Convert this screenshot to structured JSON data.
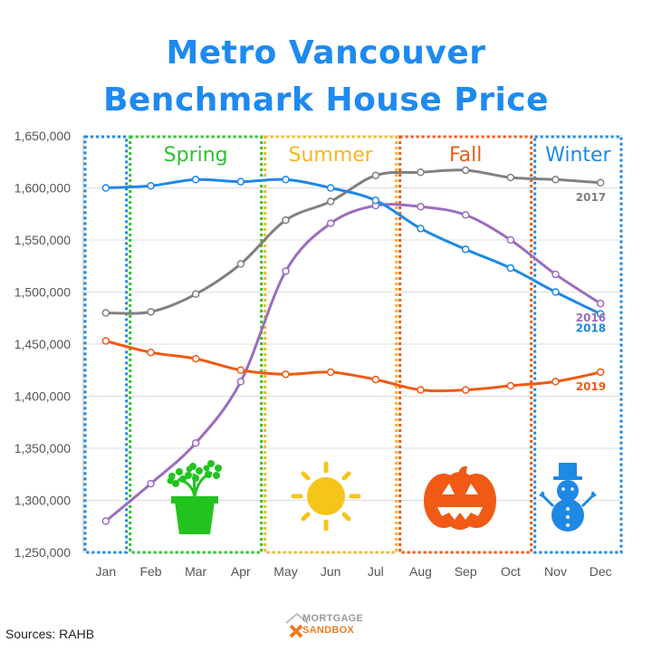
{
  "title_line1": "Metro Vancouver",
  "title_line2": "Benchmark House Price",
  "source": "Sources: RAHB",
  "logo": {
    "line1": "MORTGAGE",
    "line2": "SANDBOX"
  },
  "chart_data": {
    "type": "line",
    "categories": [
      "Jan",
      "Feb",
      "Mar",
      "Apr",
      "May",
      "Jun",
      "Jul",
      "Aug",
      "Sep",
      "Oct",
      "Nov",
      "Dec"
    ],
    "ylim": [
      1250000,
      1650000
    ],
    "yticks": [
      "1,250,000",
      "1,300,000",
      "1,350,000",
      "1,400,000",
      "1,450,000",
      "1,500,000",
      "1,550,000",
      "1,600,000",
      "1,650,000"
    ],
    "grid": true,
    "series": [
      {
        "name": "2017",
        "color": "#808080",
        "values": [
          1480000,
          1481000,
          1498000,
          1527000,
          1569000,
          1587000,
          1612000,
          1615000,
          1617000,
          1610000,
          1608000,
          1605000
        ]
      },
      {
        "name": "2016",
        "color": "#9b6cc0",
        "values": [
          1280000,
          1316000,
          1355000,
          1414000,
          1520000,
          1566000,
          1583000,
          1582000,
          1574000,
          1550000,
          1517000,
          1489000
        ]
      },
      {
        "name": "2018",
        "color": "#1e88e5",
        "values": [
          1600000,
          1602000,
          1608000,
          1606000,
          1608000,
          1600000,
          1588000,
          1561000,
          1541000,
          1523000,
          1500000,
          1479000
        ]
      },
      {
        "name": "2019",
        "color": "#f05a14",
        "values": [
          1453000,
          1442000,
          1436000,
          1425000,
          1421000,
          1423000,
          1416000,
          1406000,
          1406000,
          1410000,
          1414000,
          1423000
        ]
      }
    ],
    "seasons": [
      {
        "label": "Spring",
        "color": "#2ec22e",
        "icon": "flower-pot-icon"
      },
      {
        "label": "Summer",
        "color": "#f4b820",
        "icon": "sun-icon"
      },
      {
        "label": "Fall",
        "color": "#f05a14",
        "icon": "pumpkin-icon"
      },
      {
        "label": "Winter",
        "color": "#1e88e5",
        "icon": "snowman-icon"
      }
    ]
  }
}
